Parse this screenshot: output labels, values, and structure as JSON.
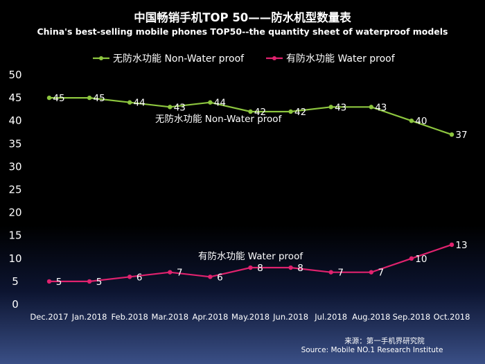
{
  "title": "中国畅销手机TOP 50——防水机型数量表",
  "subtitle": "China's best-selling mobile phones TOP50--the quantity sheet of waterproof models",
  "source_line1": "来源：第一手机界研究院",
  "source_line2": "Source: Mobile NO.1 Research Institute",
  "chart_data": {
    "type": "line",
    "categories": [
      "Dec.2017",
      "Jan.2018",
      "Feb.2018",
      "Mar.2018",
      "Apr.2018",
      "May.2018",
      "Jun.2018",
      "Jul.2018",
      "Aug.2018",
      "Sep.2018",
      "Oct.2018"
    ],
    "ylim": [
      0,
      50
    ],
    "yticks": [
      0,
      5,
      10,
      15,
      20,
      25,
      30,
      35,
      40,
      45,
      50
    ],
    "grid": false,
    "legend_position": "top",
    "series": [
      {
        "name": "无防水功能  Non-Water proof",
        "color": "#8dc63f",
        "values": [
          45,
          45,
          44,
          43,
          44,
          42,
          42,
          43,
          43,
          40,
          37
        ],
        "annotation": "无防水功能  Non-Water proof"
      },
      {
        "name": "有防水功能  Water proof",
        "color": "#e0226e",
        "values": [
          5,
          5,
          6,
          7,
          6,
          8,
          8,
          7,
          7,
          10,
          13
        ],
        "annotation": "有防水功能   Water proof"
      }
    ]
  }
}
